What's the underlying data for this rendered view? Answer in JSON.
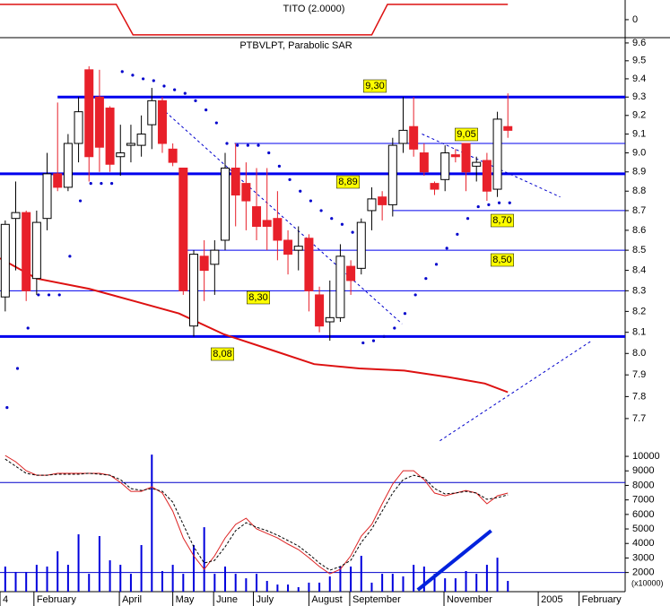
{
  "chart_data": [
    {
      "type": "line",
      "title": "TITO (2.0000)",
      "x": [
        -0.5,
        10.6,
        12.2,
        35.0,
        36.5,
        48
      ],
      "series": [
        {
          "color": "#dd1111",
          "values": [
            1,
            1,
            -1,
            -1,
            1,
            1
          ]
        }
      ],
      "ylim": [
        -1.18,
        1.29
      ],
      "yticks": [
        0
      ]
    },
    {
      "type": "candlestick",
      "title": "PTBVLPT, Parabolic SAR",
      "log": true,
      "ylim": [
        7.567,
        9.63
      ],
      "yticks": [
        9.6,
        9.5,
        9.4,
        9.3,
        9.2,
        9.1,
        {
          "value": 9.0,
          "label": "9.0"
        },
        8.9,
        8.8,
        8.7,
        8.6,
        8.5,
        8.4,
        8.3,
        8.2,
        8.1,
        {
          "value": 8.0,
          "label": "8.0"
        },
        7.9,
        7.8,
        7.7
      ],
      "up_color": "#ffffff",
      "down_color": "#e8202a",
      "open": [
        8.27,
        8.66,
        8.69,
        8.36,
        8.66,
        8.89,
        8.82,
        9.05,
        9.45,
        9.3,
        9.24,
        8.98,
        9.04,
        9.04,
        9.15,
        9.28,
        9.02,
        8.92,
        8.13,
        8.47,
        8.43,
        8.55,
        8.92,
        8.84,
        8.72,
        8.65,
        8.66,
        8.55,
        8.5,
        8.56,
        8.28,
        8.15,
        8.17,
        8.42,
        8.41,
        8.7,
        8.77,
        8.73,
        9.05,
        9.14,
        9.0,
        8.84,
        8.86,
        8.99,
        9.05,
        8.93,
        8.96,
        8.81,
        9.14
      ],
      "high": [
        8.65,
        8.85,
        8.7,
        8.7,
        9.0,
        9.27,
        9.1,
        9.3,
        9.47,
        9.45,
        9.25,
        9.15,
        9.15,
        9.2,
        9.35,
        9.3,
        9.05,
        8.92,
        8.5,
        8.55,
        8.55,
        9.0,
        9.05,
        8.95,
        8.92,
        8.92,
        8.8,
        8.6,
        8.62,
        8.58,
        8.32,
        8.35,
        8.53,
        8.45,
        8.66,
        8.82,
        8.8,
        9.08,
        9.3,
        9.3,
        9.05,
        8.85,
        9.04,
        9.02,
        9.05,
        8.98,
        9.0,
        9.22,
        9.32
      ],
      "low": [
        8.2,
        8.4,
        8.25,
        8.28,
        8.6,
        8.8,
        8.8,
        8.95,
        8.85,
        8.9,
        8.9,
        8.88,
        8.95,
        8.98,
        9.02,
        9.0,
        8.93,
        8.28,
        8.08,
        8.25,
        8.28,
        8.5,
        8.62,
        8.6,
        8.55,
        8.5,
        8.45,
        8.38,
        8.4,
        8.2,
        8.1,
        8.06,
        8.15,
        8.28,
        8.38,
        8.6,
        8.65,
        8.67,
        9.0,
        8.98,
        8.88,
        8.78,
        8.8,
        8.95,
        8.8,
        8.85,
        8.75,
        8.77,
        9.08
      ],
      "close": [
        8.63,
        8.69,
        8.3,
        8.64,
        8.89,
        8.82,
        9.05,
        9.22,
        8.98,
        9.03,
        8.94,
        9.0,
        9.05,
        9.1,
        9.28,
        9.05,
        8.95,
        8.3,
        8.48,
        8.4,
        8.5,
        8.92,
        8.78,
        8.75,
        8.62,
        8.62,
        8.55,
        8.48,
        8.52,
        8.3,
        8.13,
        8.17,
        8.47,
        8.35,
        8.64,
        8.76,
        8.73,
        9.04,
        9.12,
        9.02,
        8.9,
        8.81,
        9.0,
        8.98,
        8.9,
        8.95,
        8.8,
        9.18,
        9.12
      ],
      "sar": {
        "color": "#0000cc",
        "values": [
          7.75,
          7.93,
          8.12,
          8.28,
          8.28,
          8.28,
          8.47,
          8.75,
          8.84,
          8.84,
          8.84,
          9.44,
          9.42,
          9.4,
          9.39,
          9.36,
          9.34,
          9.32,
          9.28,
          9.23,
          9.16,
          9.05,
          9.04,
          9.04,
          9.04,
          9.0,
          8.93,
          8.86,
          8.8,
          8.75,
          8.7,
          8.66,
          8.63,
          8.59,
          8.05,
          8.06,
          8.08,
          8.12,
          8.19,
          8.28,
          8.36,
          8.43,
          8.51,
          8.58,
          8.66,
          8.72,
          8.73,
          8.74,
          8.74
        ]
      },
      "ma": {
        "color": "#dd1111",
        "x": [
          -0.5,
          3,
          8,
          12.3,
          16.6,
          20.9,
          25.2,
          29.5,
          33.8,
          38.1,
          42.3,
          45.8,
          48
        ],
        "values": [
          8.46,
          8.36,
          8.31,
          8.25,
          8.19,
          8.09,
          8.02,
          7.95,
          7.93,
          7.92,
          7.89,
          7.86,
          7.82
        ]
      },
      "levels": [
        {
          "value": 9.3,
          "label": "9,30",
          "start": 5,
          "thick": true
        },
        {
          "value": 9.05,
          "label": "9,05",
          "start": 21.9,
          "thick": false
        },
        {
          "value": 8.89,
          "label": "8,89",
          "start": -0.5,
          "thick": true
        },
        {
          "value": 8.7,
          "label": "8,70",
          "start": 37,
          "thick": false
        },
        {
          "value": 8.5,
          "label": "8,50",
          "start": 17,
          "thick": false
        },
        {
          "value": 8.3,
          "label": "8,30",
          "start": -0.5,
          "thick": false
        },
        {
          "value": 8.08,
          "label": "8,08",
          "start": -0.5,
          "thick": true
        }
      ],
      "level_color": "#0000ee",
      "label_color": "#ffff00",
      "trendlines": [
        {
          "x": [
            15.3,
            37.9
          ],
          "y": [
            9.22,
            8.14
          ]
        },
        {
          "x": [
            39.8,
            53.0
          ],
          "y": [
            9.1,
            8.77
          ]
        },
        {
          "x": [
            41.5,
            56.0
          ],
          "y": [
            7.6,
            8.06
          ]
        }
      ],
      "trend_color": "#0000cc"
    },
    {
      "type": "line",
      "xlim": [
        -0.5,
        59.2
      ],
      "ylim": [
        680,
        10560
      ],
      "yticks": [
        10000,
        9000,
        8000,
        7000,
        6000,
        5000,
        4000,
        3000,
        2000
      ],
      "unit": "(x10000)",
      "xticks": [
        {
          "value": -0.5,
          "label": "4"
        },
        {
          "value": 2.74,
          "label": "February"
        },
        {
          "value": 10.9,
          "label": "April"
        },
        {
          "value": 16.0,
          "label": "May"
        },
        {
          "value": 19.9,
          "label": "June"
        },
        {
          "value": 23.7,
          "label": "July"
        },
        {
          "value": 29.0,
          "label": "August"
        },
        {
          "value": 32.9,
          "label": "September"
        },
        {
          "value": 41.9,
          "label": "November"
        },
        {
          "value": 50.9,
          "label": "2005"
        },
        {
          "value": 54.8,
          "label": "February"
        }
      ],
      "series": [
        {
          "color": "#dd2222",
          "dash": false,
          "values": [
            10060,
            9630,
            9010,
            8700,
            8700,
            8830,
            8830,
            8830,
            8830,
            8830,
            8700,
            8210,
            7590,
            7590,
            7900,
            7470,
            6230,
            4380,
            3150,
            2220,
            3150,
            4380,
            5310,
            5740,
            5000,
            4690,
            4380,
            3950,
            3580,
            3020,
            2410,
            1910,
            2220,
            3150,
            4510,
            5310,
            6730,
            8090,
            9010,
            9010,
            8400,
            7470,
            7280,
            7470,
            7650,
            7470,
            6730,
            7280,
            7470
          ]
        },
        {
          "color": "#000000",
          "dash": true,
          "values": [
            9810,
            9320,
            8830,
            8700,
            8700,
            8770,
            8770,
            8770,
            8830,
            8770,
            8700,
            8400,
            7780,
            7650,
            7780,
            7590,
            6850,
            5310,
            3770,
            2650,
            2840,
            3770,
            4880,
            5430,
            5120,
            4880,
            4570,
            4200,
            3830,
            3270,
            2650,
            2160,
            2410,
            2840,
            4070,
            5000,
            6230,
            7470,
            8400,
            8700,
            8520,
            7780,
            7410,
            7470,
            7590,
            7470,
            7040,
            7160,
            7350
          ]
        }
      ],
      "volume": {
        "color": "#0000dd",
        "values": [
          2410,
          2040,
          2040,
          2530,
          2410,
          3460,
          2530,
          4630,
          1910,
          4510,
          2840,
          2530,
          1910,
          3890,
          10120,
          2100,
          2530,
          1910,
          3890,
          5120,
          1910,
          2410,
          1910,
          1600,
          1910,
          1420,
          1170,
          1170,
          990,
          1300,
          1300,
          1730,
          2410,
          2410,
          3150,
          1300,
          1910,
          1910,
          1730,
          2530,
          2410,
          1910,
          1600,
          1600,
          2100,
          1910,
          2530,
          3020,
          1420
        ]
      },
      "hlines": [
        8200,
        2000
      ],
      "hline_color": "#0000cc",
      "trendline": {
        "x": [
          39.4,
          46.4
        ],
        "y": [
          800,
          4880
        ],
        "color": "#0022dd"
      }
    }
  ]
}
